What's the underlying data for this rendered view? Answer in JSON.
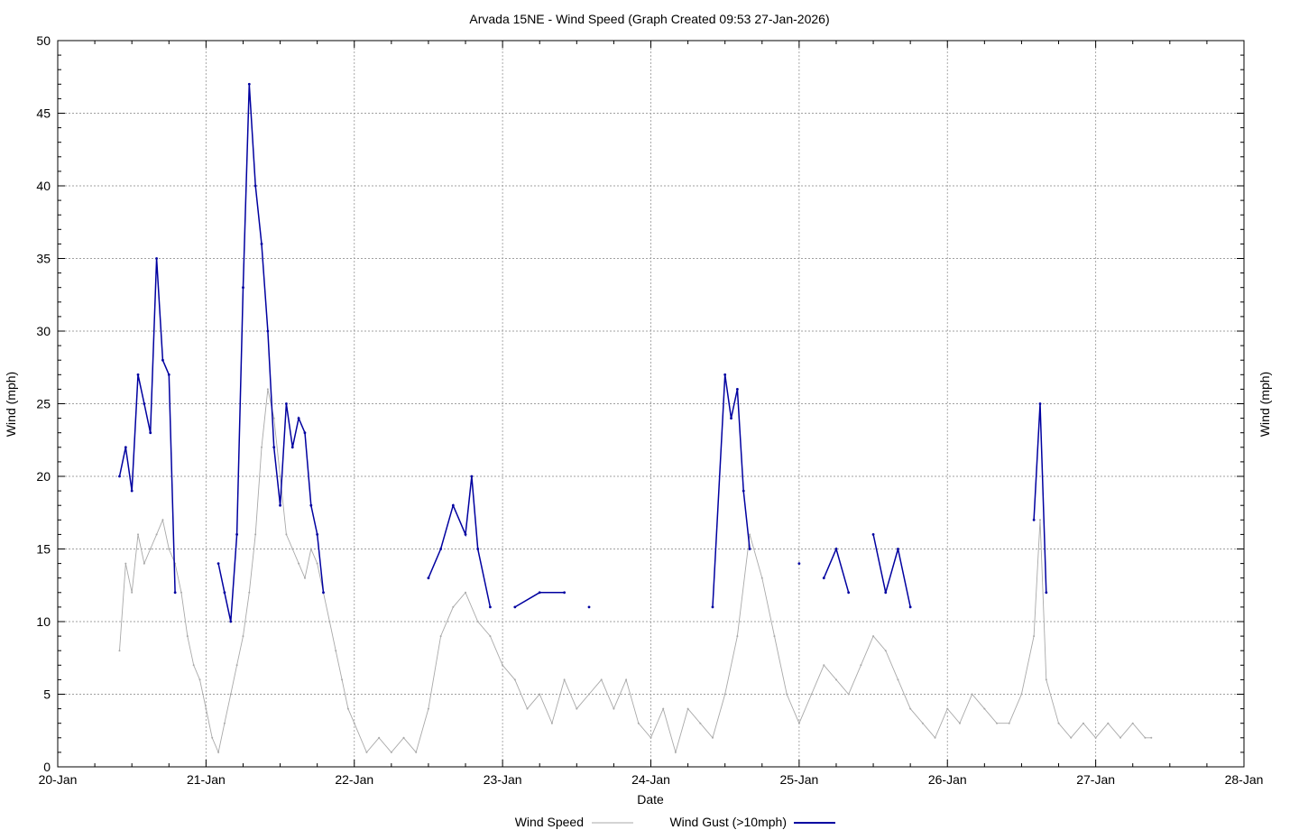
{
  "chart_data": {
    "type": "line",
    "title": "Arvada 15NE - Wind Speed (Graph Created 09:53 27-Jan-2026)",
    "xlabel": "Date",
    "ylabel_left": "Wind (mph)",
    "ylabel_right": "Wind (mph)",
    "ylim": [
      0,
      50
    ],
    "yticks": [
      "0",
      "5",
      "10",
      "15",
      "20",
      "25",
      "30",
      "35",
      "40",
      "45",
      "50"
    ],
    "xlim_days": [
      "20-Jan",
      "28-Jan"
    ],
    "xticks": [
      "20-Jan",
      "21-Jan",
      "22-Jan",
      "23-Jan",
      "24-Jan",
      "25-Jan",
      "26-Jan",
      "27-Jan",
      "28-Jan"
    ],
    "grid": true,
    "legend_position": "bottom",
    "colors": {
      "speed": "#a9a9a9",
      "gust": "#0000a0"
    },
    "series": [
      {
        "name": "Wind Speed",
        "x": [
          "20-Jan 10:00",
          "20-Jan 11:00",
          "20-Jan 12:00",
          "20-Jan 13:00",
          "20-Jan 14:00",
          "20-Jan 15:00",
          "20-Jan 16:00",
          "20-Jan 17:00",
          "20-Jan 18:00",
          "20-Jan 19:00",
          "20-Jan 20:00",
          "20-Jan 21:00",
          "20-Jan 22:00",
          "20-Jan 23:00",
          "21-Jan 00:00",
          "21-Jan 01:00",
          "21-Jan 02:00",
          "21-Jan 03:00",
          "21-Jan 04:00",
          "21-Jan 05:00",
          "21-Jan 06:00",
          "21-Jan 07:00",
          "21-Jan 08:00",
          "21-Jan 09:00",
          "21-Jan 10:00",
          "21-Jan 11:00",
          "21-Jan 12:00",
          "21-Jan 13:00",
          "21-Jan 14:00",
          "21-Jan 15:00",
          "21-Jan 16:00",
          "21-Jan 17:00",
          "21-Jan 18:00",
          "21-Jan 19:00",
          "21-Jan 20:00",
          "21-Jan 21:00",
          "21-Jan 22:00",
          "21-Jan 23:00",
          "22-Jan 00:00",
          "22-Jan 02:00",
          "22-Jan 04:00",
          "22-Jan 06:00",
          "22-Jan 08:00",
          "22-Jan 10:00",
          "22-Jan 12:00",
          "22-Jan 14:00",
          "22-Jan 16:00",
          "22-Jan 18:00",
          "22-Jan 20:00",
          "22-Jan 22:00",
          "23-Jan 00:00",
          "23-Jan 02:00",
          "23-Jan 04:00",
          "23-Jan 06:00",
          "23-Jan 08:00",
          "23-Jan 10:00",
          "23-Jan 12:00",
          "23-Jan 14:00",
          "23-Jan 16:00",
          "23-Jan 18:00",
          "23-Jan 20:00",
          "23-Jan 22:00",
          "24-Jan 00:00",
          "24-Jan 02:00",
          "24-Jan 04:00",
          "24-Jan 06:00",
          "24-Jan 08:00",
          "24-Jan 10:00",
          "24-Jan 12:00",
          "24-Jan 14:00",
          "24-Jan 16:00",
          "24-Jan 18:00",
          "24-Jan 20:00",
          "24-Jan 22:00",
          "25-Jan 00:00",
          "25-Jan 02:00",
          "25-Jan 04:00",
          "25-Jan 06:00",
          "25-Jan 08:00",
          "25-Jan 10:00",
          "25-Jan 12:00",
          "25-Jan 14:00",
          "25-Jan 16:00",
          "25-Jan 18:00",
          "25-Jan 20:00",
          "25-Jan 22:00",
          "26-Jan 00:00",
          "26-Jan 02:00",
          "26-Jan 04:00",
          "26-Jan 06:00",
          "26-Jan 08:00",
          "26-Jan 10:00",
          "26-Jan 12:00",
          "26-Jan 14:00",
          "26-Jan 15:00",
          "26-Jan 16:00",
          "26-Jan 18:00",
          "26-Jan 20:00",
          "26-Jan 22:00",
          "27-Jan 00:00",
          "27-Jan 02:00",
          "27-Jan 04:00",
          "27-Jan 06:00",
          "27-Jan 08:00",
          "27-Jan 09:00"
        ],
        "y": [
          8,
          14,
          12,
          16,
          14,
          15,
          16,
          17,
          15,
          14,
          12,
          9,
          7,
          6,
          4,
          2,
          1,
          3,
          5,
          7,
          9,
          12,
          16,
          22,
          26,
          24,
          20,
          16,
          15,
          14,
          13,
          15,
          14,
          12,
          10,
          8,
          6,
          4,
          3,
          1,
          2,
          1,
          2,
          1,
          4,
          9,
          11,
          12,
          10,
          9,
          7,
          6,
          4,
          5,
          3,
          6,
          4,
          5,
          6,
          4,
          6,
          3,
          2,
          4,
          1,
          4,
          3,
          2,
          5,
          9,
          16,
          13,
          9,
          5,
          3,
          5,
          7,
          6,
          5,
          7,
          9,
          8,
          6,
          4,
          3,
          2,
          4,
          3,
          5,
          4,
          3,
          3,
          5,
          9,
          17,
          6,
          3,
          2,
          3,
          2,
          3,
          2,
          3,
          2,
          2
        ]
      },
      {
        "name": "Wind Gust (>10mph)",
        "x": [
          "20-Jan 10:00",
          "20-Jan 11:00",
          "20-Jan 12:00",
          "20-Jan 13:00",
          "20-Jan 14:00",
          "20-Jan 15:00",
          "20-Jan 16:00",
          "20-Jan 17:00",
          "20-Jan 18:00",
          "20-Jan 19:00",
          "21-Jan 02:00",
          "21-Jan 03:00",
          "21-Jan 04:00",
          "21-Jan 05:00",
          "21-Jan 06:00",
          "21-Jan 07:00",
          "21-Jan 08:00",
          "21-Jan 09:00",
          "21-Jan 10:00",
          "21-Jan 11:00",
          "21-Jan 12:00",
          "21-Jan 13:00",
          "21-Jan 14:00",
          "21-Jan 15:00",
          "21-Jan 16:00",
          "21-Jan 17:00",
          "21-Jan 18:00",
          "21-Jan 19:00",
          "22-Jan 12:00",
          "22-Jan 14:00",
          "22-Jan 16:00",
          "22-Jan 18:00",
          "22-Jan 19:00",
          "22-Jan 20:00",
          "22-Jan 22:00",
          "23-Jan 02:00",
          "23-Jan 06:00",
          "23-Jan 10:00",
          "23-Jan 14:00",
          "24-Jan 10:00",
          "24-Jan 12:00",
          "24-Jan 13:00",
          "24-Jan 14:00",
          "24-Jan 15:00",
          "24-Jan 16:00",
          "25-Jan 00:00",
          "25-Jan 04:00",
          "25-Jan 06:00",
          "25-Jan 08:00",
          "25-Jan 12:00",
          "25-Jan 14:00",
          "25-Jan 16:00",
          "25-Jan 18:00",
          "26-Jan 14:00",
          "26-Jan 15:00",
          "26-Jan 16:00"
        ],
        "y": [
          20,
          22,
          19,
          27,
          25,
          23,
          35,
          28,
          27,
          12,
          14,
          12,
          10,
          16,
          33,
          47,
          40,
          36,
          30,
          22,
          18,
          25,
          22,
          24,
          23,
          18,
          16,
          12,
          13,
          15,
          18,
          16,
          20,
          15,
          11,
          11,
          12,
          12,
          11,
          11,
          27,
          24,
          26,
          19,
          15,
          14,
          13,
          15,
          12,
          16,
          12,
          15,
          11,
          17,
          25,
          12
        ]
      }
    ]
  },
  "legend": {
    "speed_label": "Wind Speed",
    "gust_label": "Wind Gust (>10mph)"
  }
}
